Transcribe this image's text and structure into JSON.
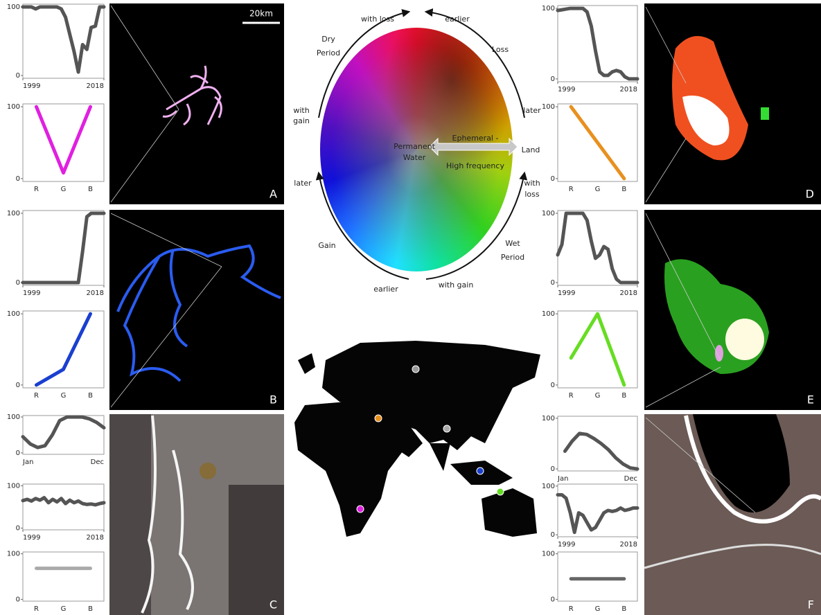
{
  "chart_data": [
    {
      "type": "line",
      "x": [
        1999,
        2001,
        2002,
        2003,
        2007,
        2008,
        2009,
        2010,
        2011,
        2012,
        2013,
        2014,
        2015,
        2016,
        2017,
        2018
      ],
      "values": [
        100,
        100,
        97,
        100,
        100,
        97,
        85,
        60,
        35,
        5,
        45,
        38,
        70,
        72,
        100,
        100
      ],
      "color": "#555555",
      "xlim": [
        1999,
        2018
      ],
      "xticks": [
        1999,
        2018
      ],
      "ylim": [
        -4,
        104
      ],
      "yticks": [
        0,
        100
      ]
    },
    {
      "type": "line",
      "categories": [
        "R",
        "G",
        "B"
      ],
      "values": [
        100,
        8,
        100
      ],
      "color": "#e020e0",
      "ylim": [
        -4,
        104
      ],
      "yticks": [
        0,
        100
      ]
    },
    {
      "type": "line",
      "x": [
        1999,
        2012,
        2013,
        2014,
        2015,
        2018
      ],
      "values": [
        0,
        0,
        45,
        95,
        100,
        100
      ],
      "color": "#555555",
      "xlim": [
        1999,
        2018
      ],
      "xticks": [
        1999,
        2018
      ],
      "ylim": [
        -4,
        104
      ],
      "yticks": [
        0,
        100
      ]
    },
    {
      "type": "line",
      "categories": [
        "R",
        "G",
        "B"
      ],
      "values": [
        0,
        22,
        100
      ],
      "color": "#1a3fd0",
      "ylim": [
        -4,
        104
      ],
      "yticks": [
        0,
        100
      ]
    },
    {
      "type": "line",
      "categories": [
        "Jan",
        null,
        null,
        null,
        null,
        null,
        null,
        null,
        null,
        null,
        null,
        "Dec"
      ],
      "values": [
        45,
        25,
        15,
        20,
        50,
        90,
        100,
        100,
        100,
        95,
        85,
        70
      ],
      "color": "#555555",
      "ylim": [
        -4,
        104
      ],
      "yticks": [
        0,
        100
      ]
    },
    {
      "type": "line",
      "x": [
        1999,
        2000,
        2001,
        2002,
        2003,
        2004,
        2005,
        2006,
        2007,
        2008,
        2009,
        2010,
        2011,
        2012,
        2013,
        2014,
        2015,
        2016,
        2017,
        2018
      ],
      "values": [
        65,
        68,
        64,
        70,
        66,
        72,
        60,
        68,
        62,
        70,
        58,
        66,
        60,
        64,
        58,
        56,
        57,
        55,
        58,
        60
      ],
      "color": "#555555",
      "xlim": [
        1999,
        2018
      ],
      "xticks": [
        1999,
        2018
      ],
      "ylim": [
        -4,
        104
      ],
      "yticks": [
        0,
        100
      ]
    },
    {
      "type": "line",
      "categories": [
        "R",
        "G",
        "B"
      ],
      "values": [
        68,
        68,
        68
      ],
      "color": "#aaaaaa",
      "ylim": [
        -4,
        104
      ],
      "yticks": [
        0,
        100
      ]
    },
    {
      "type": "line",
      "x": [
        1999,
        2000,
        2001,
        2002,
        2003,
        2004,
        2005,
        2006,
        2007,
        2008,
        2009,
        2010,
        2011,
        2012,
        2013,
        2014,
        2015,
        2016,
        2017,
        2018
      ],
      "values": [
        97,
        98,
        99,
        100,
        100,
        100,
        100,
        95,
        75,
        40,
        10,
        5,
        5,
        10,
        12,
        10,
        3,
        0,
        0,
        0
      ],
      "color": "#555555",
      "xlim": [
        1999,
        2018
      ],
      "xticks": [
        1999,
        2018
      ],
      "ylim": [
        -4,
        104
      ],
      "yticks": [
        0,
        100
      ]
    },
    {
      "type": "line",
      "categories": [
        "R",
        "G",
        "B"
      ],
      "values": [
        100,
        50,
        0
      ],
      "color": "#e8901e",
      "ylim": [
        -4,
        104
      ],
      "yticks": [
        0,
        100
      ]
    },
    {
      "type": "line",
      "x": [
        1999,
        2000,
        2001,
        2002,
        2003,
        2004,
        2005,
        2006,
        2007,
        2008,
        2009,
        2010,
        2011,
        2012,
        2013,
        2014,
        2015,
        2016,
        2017,
        2018
      ],
      "values": [
        40,
        55,
        100,
        100,
        100,
        100,
        100,
        90,
        60,
        35,
        40,
        52,
        48,
        20,
        5,
        0,
        0,
        0,
        0,
        0
      ],
      "color": "#555555",
      "xlim": [
        1999,
        2018
      ],
      "xticks": [
        1999,
        2018
      ],
      "ylim": [
        -4,
        104
      ],
      "yticks": [
        0,
        100
      ]
    },
    {
      "type": "line",
      "categories": [
        "R",
        "G",
        "B"
      ],
      "values": [
        38,
        100,
        0
      ],
      "color": "#66dd22",
      "ylim": [
        -4,
        104
      ],
      "yticks": [
        0,
        100
      ]
    },
    {
      "type": "line",
      "categories": [
        "Jan",
        null,
        null,
        null,
        null,
        null,
        null,
        null,
        null,
        null,
        null,
        "Dec"
      ],
      "values": [
        null,
        35,
        55,
        70,
        68,
        60,
        50,
        38,
        22,
        10,
        2,
        0
      ],
      "color": "#555555",
      "ylim": [
        -4,
        104
      ],
      "yticks": [
        0,
        100
      ]
    },
    {
      "type": "line",
      "x": [
        1999,
        2000,
        2001,
        2002,
        2003,
        2004,
        2005,
        2006,
        2007,
        2008,
        2009,
        2010,
        2011,
        2012,
        2013,
        2014,
        2015,
        2016,
        2017,
        2018
      ],
      "values": [
        82,
        82,
        75,
        45,
        5,
        45,
        40,
        25,
        10,
        15,
        30,
        45,
        50,
        48,
        50,
        55,
        50,
        52,
        55,
        55
      ],
      "color": "#555555",
      "xlim": [
        1999,
        2018
      ],
      "xticks": [
        1999,
        2018
      ],
      "ylim": [
        -4,
        104
      ],
      "yticks": [
        0,
        100
      ]
    },
    {
      "type": "line",
      "categories": [
        "R",
        "G",
        "B"
      ],
      "values": [
        45,
        45,
        45
      ],
      "color": "#666666",
      "ylim": [
        -4,
        104
      ],
      "yticks": [
        0,
        100
      ]
    }
  ],
  "scale_bar": "20km",
  "panel_labels": [
    "A",
    "B",
    "C",
    "D",
    "E",
    "F"
  ],
  "wheel_labels": [
    "with loss",
    "earlier",
    "Dry",
    "Period",
    "Loss",
    "with",
    "gain",
    "later",
    "Land",
    "with",
    "loss",
    "later",
    "Gain",
    "Wet",
    "Period",
    "earlier",
    "with gain",
    "Permanent",
    "Water",
    "Ephemeral -",
    "High frequency"
  ]
}
